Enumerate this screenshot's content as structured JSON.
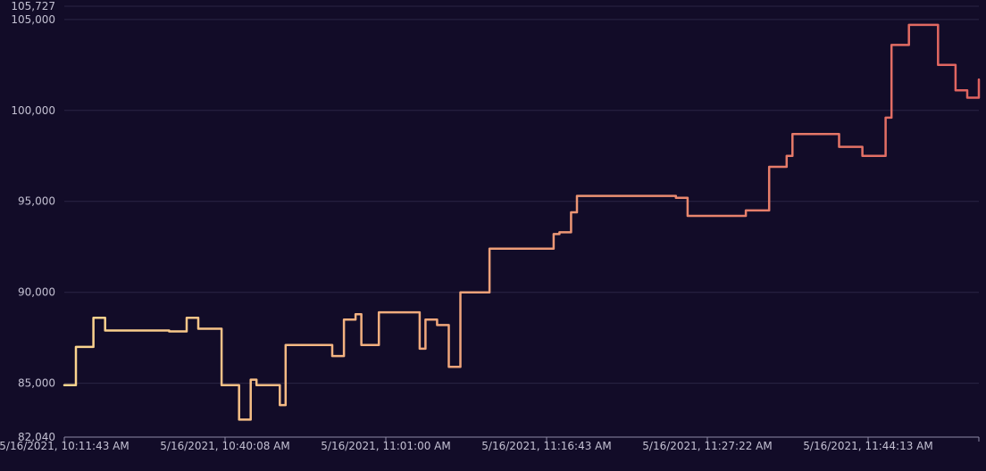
{
  "chart_data": {
    "type": "line",
    "title": "",
    "xlabel": "",
    "ylabel": "",
    "ylim": [
      82040,
      105727
    ],
    "y_ticks": [
      82040,
      85000,
      90000,
      95000,
      100000,
      105000,
      105727
    ],
    "y_tick_labels": [
      "82,040",
      "85,000",
      "90,000",
      "95,000",
      "100,000",
      "105,000",
      "105,727"
    ],
    "x_tick_labels": [
      "5/16/2021, 10:11:43 AM",
      "5/16/2021, 10:40:08 AM",
      "5/16/2021, 11:01:00 AM",
      "5/16/2021, 11:16:43 AM",
      "5/16/2021, 11:27:22 AM",
      "5/16/2021, 11:44:13 AM"
    ],
    "grid": true,
    "legend": "none",
    "line_gradient": [
      "#fbd68f",
      "#e0625f"
    ],
    "series": [
      {
        "step": true,
        "values": [
          84900,
          84900,
          87000,
          87000,
          87000,
          88600,
          88600,
          87900,
          87900,
          87900,
          87900,
          87900,
          87900,
          87900,
          87900,
          87900,
          87900,
          87900,
          87850,
          87850,
          87850,
          88600,
          88600,
          88000,
          88000,
          88000,
          88000,
          84900,
          84900,
          84900,
          83000,
          83000,
          85200,
          84900,
          84900,
          84900,
          84900,
          83800,
          87100,
          87100,
          87100,
          87100,
          87100,
          87100,
          87100,
          87100,
          86500,
          86500,
          88500,
          88500,
          88800,
          87100,
          87100,
          87100,
          88900,
          88900,
          88900,
          88900,
          88900,
          88900,
          88900,
          86900,
          88500,
          88500,
          88200,
          88200,
          85900,
          85900,
          90000,
          90000,
          90000,
          90000,
          90000,
          92400,
          92400,
          92400,
          92400,
          92400,
          92400,
          92400,
          92400,
          92400,
          92400,
          92400,
          93200,
          93300,
          93300,
          94400,
          95300,
          95300,
          95300,
          95300,
          95300,
          95300,
          95300,
          95300,
          95300,
          95300,
          95300,
          95300,
          95300,
          95300,
          95300,
          95300,
          95300,
          95200,
          95200,
          94200,
          94200,
          94200,
          94200,
          94200,
          94200,
          94200,
          94200,
          94200,
          94200,
          94500,
          94500,
          94500,
          94500,
          96900,
          96900,
          96900,
          97500,
          98700,
          98700,
          98700,
          98700,
          98700,
          98700,
          98700,
          98700,
          98000,
          98000,
          98000,
          98000,
          97500,
          97500,
          97500,
          97500,
          99600,
          103600,
          103600,
          103600,
          104700,
          104700,
          104700,
          104700,
          104700,
          102500,
          102500,
          102500,
          101100,
          101100,
          100700,
          100700,
          101700
        ]
      }
    ]
  }
}
